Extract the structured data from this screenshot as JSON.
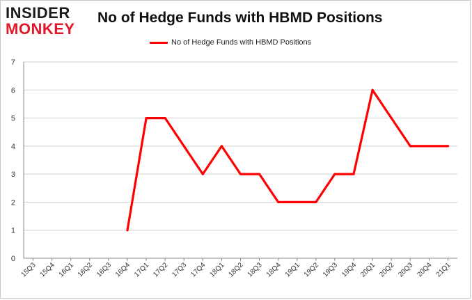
{
  "brand": {
    "line1": "INSIDER",
    "line2": "MONKEY"
  },
  "chart_data": {
    "type": "line",
    "title": "No of Hedge Funds with HBMD Positions",
    "xlabel": "",
    "ylabel": "",
    "ylim": [
      0,
      7
    ],
    "yticks": [
      0,
      1,
      2,
      3,
      4,
      5,
      6,
      7
    ],
    "grid": true,
    "legend_position": "top-center",
    "categories": [
      "15Q3",
      "15Q4",
      "16Q1",
      "16Q2",
      "16Q3",
      "16Q4",
      "17Q1",
      "17Q2",
      "17Q3",
      "17Q4",
      "18Q1",
      "18Q2",
      "18Q3",
      "18Q4",
      "19Q1",
      "19Q2",
      "19Q3",
      "19Q4",
      "20Q1",
      "20Q2",
      "20Q3",
      "20Q4",
      "21Q1"
    ],
    "series": [
      {
        "name": "No of Hedge Funds with HBMD Positions",
        "color": "#ff0000",
        "values": [
          null,
          null,
          null,
          null,
          null,
          1,
          5,
          5,
          4,
          3,
          4,
          3,
          3,
          2,
          2,
          2,
          3,
          3,
          6,
          5,
          4,
          4,
          4
        ]
      }
    ]
  }
}
